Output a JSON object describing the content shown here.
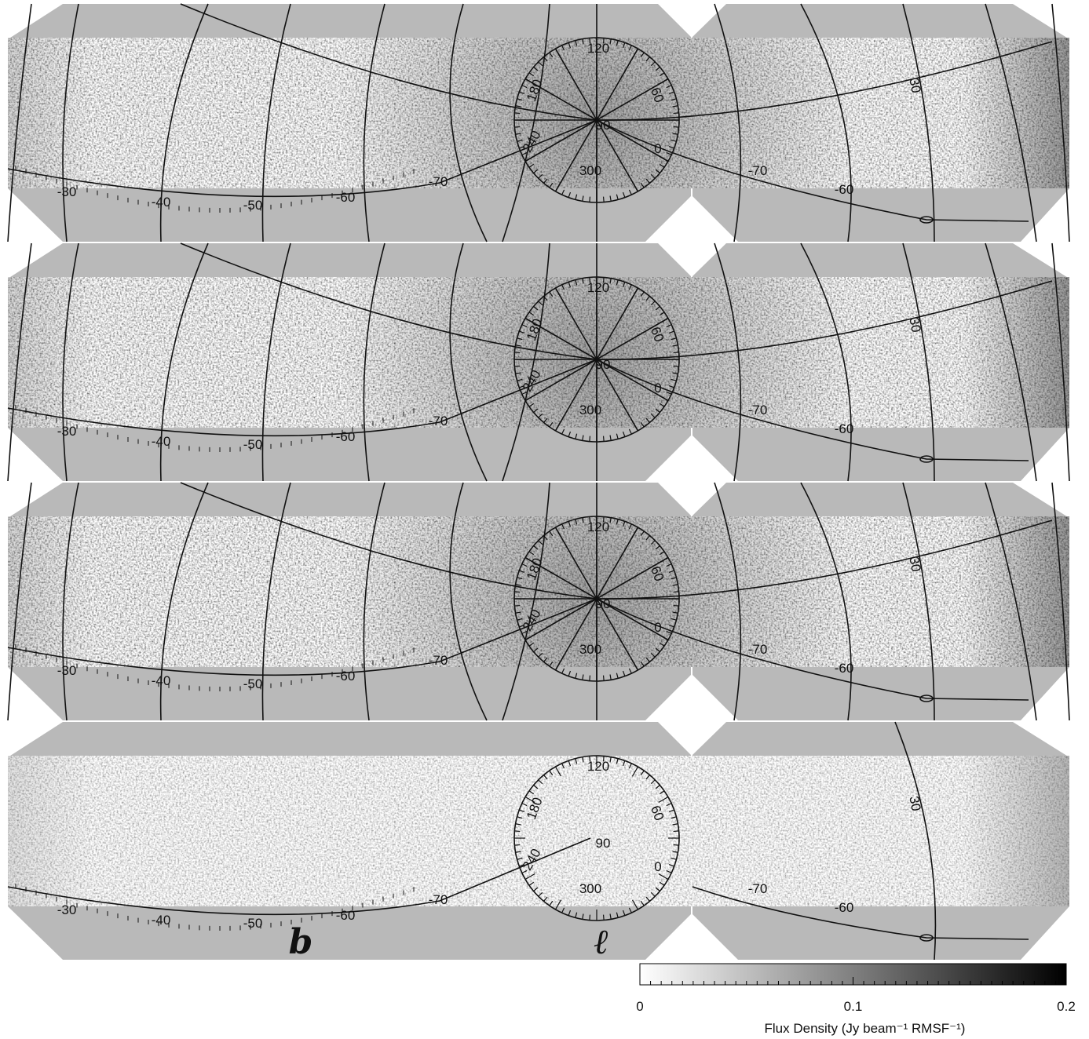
{
  "panels": [
    {
      "labels": [
        "-30",
        "-40",
        "-50",
        "-60",
        "-70",
        "-70",
        "-60",
        "30",
        "120",
        "60",
        "0",
        "300",
        "240",
        "180",
        "90"
      ]
    },
    {
      "labels": [
        "-30",
        "-40",
        "-50",
        "-60",
        "-70",
        "-70",
        "-60",
        "30",
        "120",
        "60",
        "0",
        "300",
        "240",
        "180",
        "90"
      ]
    },
    {
      "labels": [
        "-30",
        "-40",
        "-50",
        "-60",
        "-70",
        "-70",
        "-60",
        "30",
        "120",
        "60",
        "0",
        "300",
        "240",
        "180",
        "90"
      ]
    },
    {
      "labels": [
        "-30",
        "-40",
        "-50",
        "-60",
        "-70",
        "-70",
        "-60",
        "30",
        "120",
        "60",
        "0",
        "300",
        "240",
        "180",
        "90"
      ]
    }
  ],
  "axis_labels": {
    "b": "b",
    "l": "ℓ"
  },
  "colorbar": {
    "range": [
      0,
      0.2
    ],
    "ticks": [
      0,
      0.1,
      0.2
    ],
    "label": "Flux Density (Jy beam⁻¹ RMSF⁻¹)"
  }
}
